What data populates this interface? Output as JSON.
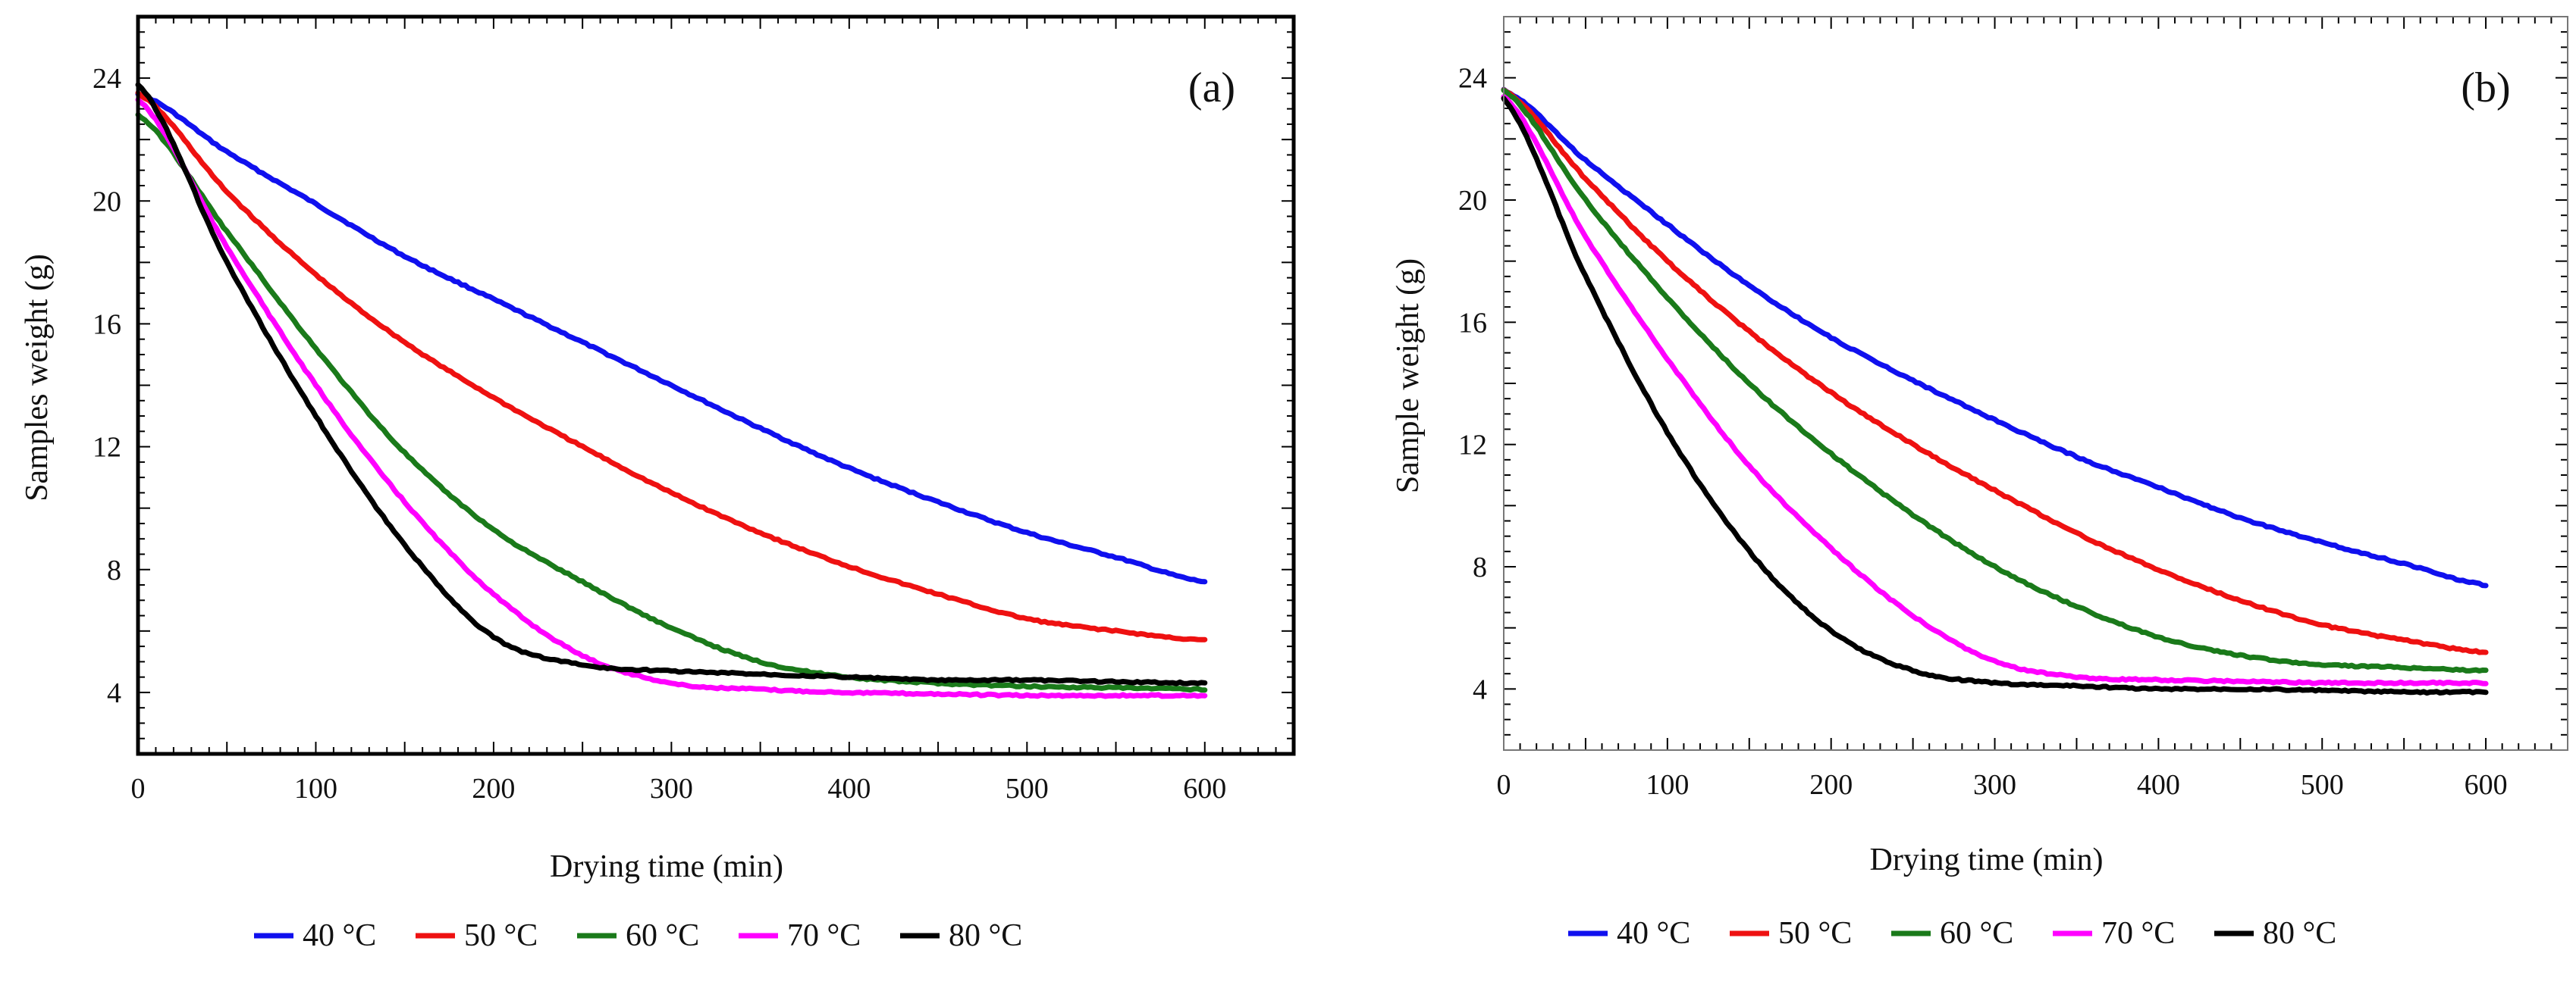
{
  "chart_data": [
    {
      "type": "line",
      "panel_label": "(a)",
      "xlabel": "Drying time  (min)",
      "ylabel": "Samples weight (g)",
      "xlim": [
        0,
        650
      ],
      "ylim": [
        2,
        26
      ],
      "xticks": [
        0,
        100,
        200,
        300,
        400,
        500,
        600
      ],
      "yticks": [
        4,
        8,
        12,
        16,
        20,
        24
      ],
      "series": [
        {
          "name": "40 °C",
          "color": "#1010ee",
          "x": [
            0,
            50,
            100,
            150,
            200,
            250,
            300,
            350,
            400,
            450,
            500,
            550,
            600
          ],
          "y": [
            23.5,
            21.6,
            19.9,
            18.2,
            16.8,
            15.4,
            14.0,
            12.6,
            11.3,
            10.2,
            9.2,
            8.4,
            7.6
          ]
        },
        {
          "name": "50 °C",
          "color": "#ee1111",
          "x": [
            0,
            50,
            100,
            150,
            200,
            250,
            300,
            350,
            400,
            450,
            500,
            550,
            600
          ],
          "y": [
            23.5,
            20.3,
            17.6,
            15.4,
            13.6,
            12.0,
            10.5,
            9.2,
            8.1,
            7.2,
            6.4,
            6.0,
            5.7
          ]
        },
        {
          "name": "60 °C",
          "color": "#1a7a1a",
          "x": [
            0,
            50,
            100,
            150,
            200,
            250,
            300,
            350,
            400,
            450,
            500,
            550,
            600
          ],
          "y": [
            22.8,
            19.0,
            15.2,
            11.8,
            9.3,
            7.6,
            6.1,
            5.0,
            4.5,
            4.3,
            4.2,
            4.15,
            4.1
          ]
        },
        {
          "name": "70 °C",
          "color": "#ff00ff",
          "x": [
            0,
            50,
            100,
            150,
            200,
            250,
            300,
            350,
            400,
            450,
            500,
            550,
            600
          ],
          "y": [
            23.3,
            18.5,
            14.0,
            10.2,
            7.2,
            5.2,
            4.3,
            4.1,
            4.0,
            3.95,
            3.9,
            3.9,
            3.9
          ]
        },
        {
          "name": "80 °C",
          "color": "#000000",
          "x": [
            0,
            50,
            100,
            150,
            200,
            250,
            300,
            350,
            400,
            450,
            500,
            550,
            600
          ],
          "y": [
            23.8,
            18.0,
            13.0,
            8.8,
            5.8,
            4.9,
            4.7,
            4.6,
            4.5,
            4.4,
            4.4,
            4.35,
            4.3
          ]
        }
      ]
    },
    {
      "type": "line",
      "panel_label": "(b)",
      "xlabel": "Drying time  (min)",
      "ylabel": "Sample weight (g)",
      "xlim": [
        0,
        650
      ],
      "ylim": [
        2,
        26
      ],
      "xticks": [
        0,
        100,
        200,
        300,
        400,
        500,
        600
      ],
      "yticks": [
        4,
        8,
        12,
        16,
        20,
        24
      ],
      "series": [
        {
          "name": "40 °C",
          "color": "#1010ee",
          "x": [
            0,
            50,
            100,
            150,
            200,
            250,
            300,
            350,
            400,
            450,
            500,
            550,
            600
          ],
          "y": [
            23.6,
            21.3,
            19.2,
            17.2,
            15.5,
            14.1,
            12.8,
            11.6,
            10.6,
            9.6,
            8.8,
            8.1,
            7.4
          ]
        },
        {
          "name": "50 °C",
          "color": "#ee1111",
          "x": [
            0,
            50,
            100,
            150,
            200,
            250,
            300,
            350,
            400,
            450,
            500,
            550,
            600
          ],
          "y": [
            23.6,
            20.7,
            18.0,
            15.7,
            13.7,
            12.0,
            10.5,
            9.1,
            7.9,
            6.9,
            6.1,
            5.6,
            5.2
          ]
        },
        {
          "name": "60 °C",
          "color": "#1a7a1a",
          "x": [
            0,
            50,
            100,
            150,
            200,
            250,
            300,
            350,
            400,
            450,
            500,
            550,
            600
          ],
          "y": [
            23.6,
            20.0,
            16.8,
            14.0,
            11.7,
            9.7,
            8.0,
            6.7,
            5.7,
            5.1,
            4.8,
            4.7,
            4.6
          ]
        },
        {
          "name": "70 °C",
          "color": "#ff00ff",
          "x": [
            0,
            50,
            100,
            150,
            200,
            250,
            300,
            350,
            400,
            450,
            500,
            550,
            600
          ],
          "y": [
            23.4,
            18.8,
            14.8,
            11.3,
            8.6,
            6.4,
            4.9,
            4.4,
            4.3,
            4.25,
            4.2,
            4.2,
            4.2
          ]
        },
        {
          "name": "80 °C",
          "color": "#000000",
          "x": [
            0,
            50,
            100,
            150,
            200,
            250,
            300,
            350,
            400,
            450,
            500,
            550,
            600
          ],
          "y": [
            23.3,
            17.5,
            12.4,
            8.5,
            5.9,
            4.6,
            4.2,
            4.1,
            4.0,
            4.0,
            3.95,
            3.9,
            3.9
          ]
        }
      ]
    }
  ],
  "legend": {
    "entries": [
      {
        "label": "40 °C",
        "color": "#1010ee"
      },
      {
        "label": "50 °C",
        "color": "#ee1111"
      },
      {
        "label": "60 °C",
        "color": "#1a7a1a"
      },
      {
        "label": "70 °C",
        "color": "#ff00ff"
      },
      {
        "label": "80 °C",
        "color": "#000000"
      }
    ]
  }
}
